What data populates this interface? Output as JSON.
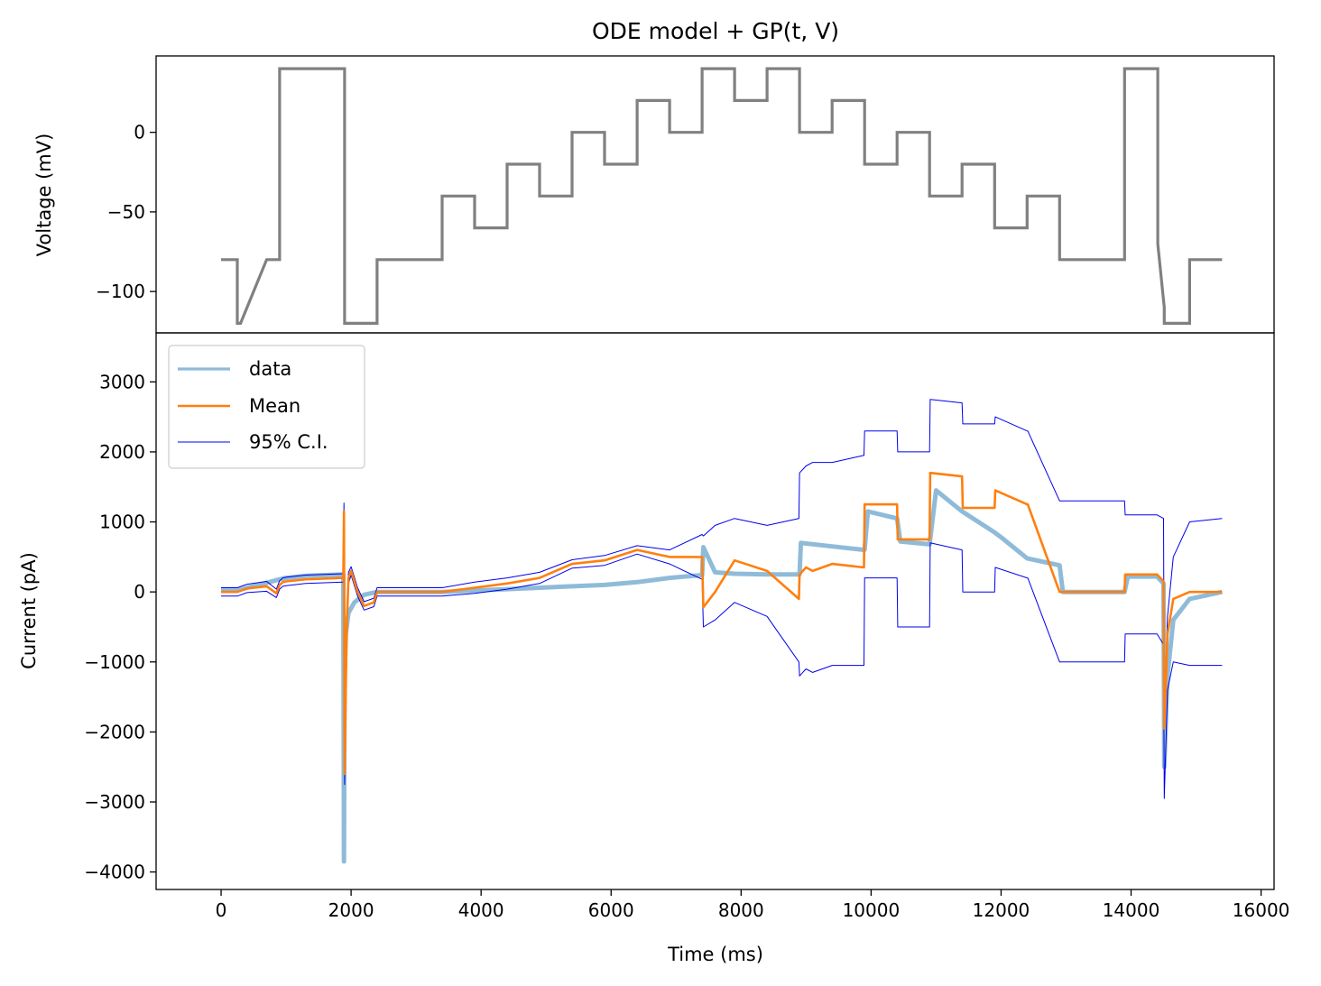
{
  "chart_data": [
    {
      "id": "voltage",
      "type": "line",
      "title": "ODE model + GP(t, V)",
      "xlabel": "",
      "ylabel": "Voltage (mV)",
      "xlim": [
        -1000,
        16200
      ],
      "ylim": [
        -126,
        48
      ],
      "yticks": [
        0,
        -50,
        -100
      ],
      "ytick_labels": [
        "0",
        "−50",
        "−100"
      ],
      "series": [
        {
          "color": "#808080",
          "x": [
            0,
            250,
            250,
            300,
            700,
            900,
            900,
            1900,
            1900,
            2400,
            2400,
            3400,
            3400,
            3900,
            3900,
            4400,
            4400,
            4900,
            4900,
            5400,
            5400,
            5900,
            5900,
            6400,
            6400,
            6900,
            6900,
            7400,
            7400,
            7900,
            7900,
            8400,
            8400,
            8900,
            8900,
            9400,
            9400,
            9900,
            9900,
            10400,
            10400,
            10900,
            10900,
            11400,
            11400,
            11900,
            11900,
            12400,
            12400,
            12900,
            12900,
            13900,
            13900,
            14410,
            14410,
            14510,
            14510,
            14900,
            14900,
            15400
          ],
          "y": [
            -80,
            -80,
            -120,
            -120,
            -80,
            -80,
            40,
            40,
            -120,
            -120,
            -80,
            -80,
            -40,
            -40,
            -60,
            -60,
            -20,
            -20,
            -40,
            -40,
            0,
            0,
            -20,
            -20,
            20,
            20,
            0,
            0,
            40,
            40,
            20,
            20,
            40,
            40,
            0,
            0,
            20,
            20,
            -20,
            -20,
            0,
            0,
            -40,
            -40,
            -20,
            -20,
            -60,
            -60,
            -40,
            -40,
            -80,
            -80,
            40,
            40,
            -70,
            -110,
            -120,
            -120,
            -80,
            -80
          ]
        }
      ]
    },
    {
      "id": "current",
      "type": "line",
      "xlabel": "Time (ms)",
      "ylabel": "Current (pA)",
      "xlim": [
        -1000,
        16200
      ],
      "ylim": [
        -4250,
        3700
      ],
      "xticks": [
        0,
        2000,
        4000,
        6000,
        8000,
        10000,
        12000,
        14000,
        16000
      ],
      "xtick_labels": [
        "0",
        "2000",
        "4000",
        "6000",
        "8000",
        "10000",
        "12000",
        "14000",
        "16000"
      ],
      "yticks": [
        3000,
        2000,
        1000,
        0,
        -1000,
        -2000,
        -3000,
        -4000
      ],
      "ytick_labels": [
        "3000",
        "2000",
        "1000",
        "0",
        "−1000",
        "−2000",
        "−3000",
        "−4000"
      ],
      "legend_position": "top-left",
      "series": [
        {
          "name": "data",
          "color": "#8fbbd9",
          "x": [
            0,
            250,
            400,
            700,
            900,
            1000,
            1300,
            1880,
            1890,
            1900,
            1920,
            1960,
            2050,
            2200,
            2400,
            2600,
            3400,
            3900,
            4400,
            4900,
            5400,
            5900,
            6400,
            6900,
            7400,
            7420,
            7600,
            7900,
            8400,
            8900,
            8920,
            9400,
            9900,
            9950,
            10400,
            10450,
            10900,
            11000,
            11400,
            11900,
            12000,
            12400,
            12900,
            12950,
            13900,
            13950,
            14400,
            14500,
            14510,
            14560,
            14650,
            14900,
            15400
          ],
          "y": [
            20,
            20,
            60,
            130,
            180,
            200,
            230,
            250,
            -3850,
            -1200,
            -600,
            -300,
            -150,
            -40,
            0,
            0,
            0,
            20,
            40,
            60,
            80,
            100,
            140,
            200,
            240,
            640,
            280,
            260,
            250,
            250,
            700,
            650,
            600,
            1150,
            1050,
            720,
            680,
            1450,
            1150,
            850,
            780,
            480,
            380,
            0,
            0,
            220,
            220,
            120,
            -2500,
            -1200,
            -400,
            -100,
            0
          ]
        },
        {
          "name": "Mean",
          "color": "#ff7f0e",
          "x": [
            0,
            250,
            400,
            700,
            850,
            900,
            950,
            1000,
            1300,
            1880,
            1890,
            1900,
            1930,
            1960,
            2000,
            2100,
            2200,
            2350,
            2400,
            2600,
            3400,
            3900,
            4400,
            4900,
            5400,
            5900,
            6400,
            6900,
            7400,
            7420,
            7600,
            7900,
            8400,
            8890,
            8900,
            9000,
            9100,
            9400,
            9890,
            9900,
            10400,
            10410,
            10900,
            10910,
            11400,
            11410,
            11900,
            11910,
            12400,
            12410,
            12900,
            12910,
            13900,
            13910,
            14400,
            14500,
            14510,
            14560,
            14650,
            14900,
            15400
          ],
          "y": [
            0,
            0,
            50,
            80,
            -20,
            100,
            140,
            150,
            180,
            200,
            1150,
            -2600,
            -600,
            200,
            300,
            0,
            -200,
            -150,
            0,
            0,
            0,
            60,
            120,
            200,
            400,
            450,
            600,
            500,
            500,
            -220,
            0,
            450,
            300,
            -100,
            250,
            350,
            300,
            400,
            350,
            1250,
            1250,
            750,
            750,
            1700,
            1650,
            1200,
            1200,
            1450,
            1250,
            1250,
            0,
            0,
            0,
            250,
            250,
            150,
            -1950,
            -600,
            -100,
            0,
            0
          ]
        },
        {
          "name": "95% C.I.",
          "color": "#0000ee",
          "x": [
            0,
            250,
            400,
            700,
            850,
            900,
            950,
            1000,
            1300,
            1880,
            1890,
            1900,
            1930,
            1960,
            2000,
            2100,
            2200,
            2350,
            2400,
            2600,
            3400,
            3900,
            4400,
            4900,
            5400,
            5900,
            6400,
            6900,
            7400,
            7420,
            7600,
            7900,
            8400,
            8890,
            8900,
            9000,
            9100,
            9400,
            9890,
            9900,
            10400,
            10410,
            10900,
            10910,
            11400,
            11410,
            11900,
            11910,
            12400,
            12410,
            12900,
            12910,
            13900,
            13910,
            14400,
            14500,
            14510,
            14560,
            14650,
            14900,
            15400
          ],
          "y": [
            60,
            60,
            110,
            150,
            40,
            160,
            200,
            210,
            240,
            260,
            1270,
            -2450,
            -480,
            280,
            360,
            60,
            -140,
            -90,
            60,
            60,
            60,
            140,
            200,
            280,
            460,
            520,
            660,
            600,
            820,
            800,
            950,
            1050,
            950,
            1050,
            1700,
            1800,
            1850,
            1850,
            1950,
            2300,
            2300,
            2000,
            2000,
            2750,
            2700,
            2400,
            2400,
            2500,
            2300,
            2300,
            1300,
            1300,
            1300,
            1100,
            1100,
            1050,
            -1700,
            -350,
            500,
            1000,
            1050
          ]
        },
        {
          "color": "#0000ee",
          "x": [
            0,
            250,
            400,
            700,
            850,
            900,
            950,
            1000,
            1300,
            1880,
            1890,
            1900,
            1930,
            1960,
            2000,
            2100,
            2200,
            2350,
            2400,
            2600,
            3400,
            3900,
            4400,
            4900,
            5400,
            5900,
            6400,
            6900,
            7400,
            7420,
            7600,
            7900,
            8400,
            8890,
            8900,
            9000,
            9100,
            9400,
            9890,
            9900,
            10400,
            10410,
            10900,
            10910,
            11400,
            11410,
            11900,
            11910,
            12400,
            12410,
            12900,
            12910,
            13900,
            13910,
            14400,
            14500,
            14510,
            14560,
            14650,
            14900,
            15400
          ],
          "y": [
            -60,
            -60,
            -10,
            10,
            -80,
            40,
            80,
            90,
            120,
            140,
            1030,
            -2750,
            -720,
            120,
            240,
            -60,
            -260,
            -210,
            -60,
            -60,
            -60,
            -20,
            40,
            120,
            340,
            380,
            540,
            400,
            180,
            -500,
            -400,
            -150,
            -350,
            -1000,
            -1200,
            -1100,
            -1150,
            -1050,
            -1050,
            200,
            200,
            -500,
            -500,
            700,
            600,
            0,
            0,
            350,
            200,
            200,
            -1000,
            -1000,
            -1000,
            -600,
            -600,
            -750,
            -2950,
            -1400,
            -1000,
            -1050,
            -1050
          ]
        }
      ]
    }
  ]
}
